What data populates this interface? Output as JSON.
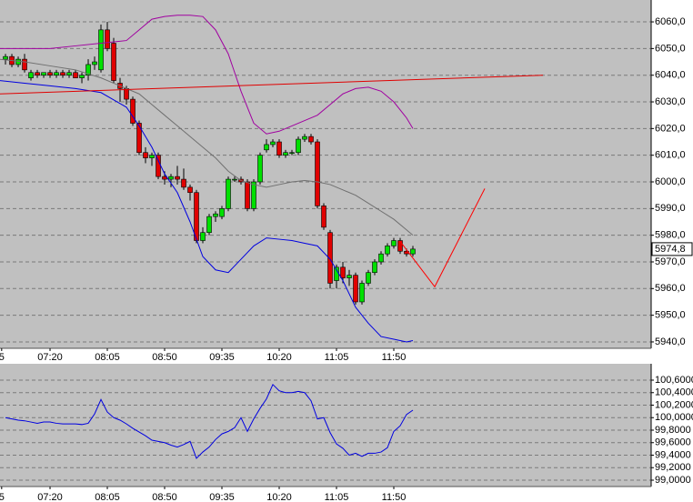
{
  "chart_data": [
    {
      "type": "candlestick",
      "x": [
        -7,
        -6,
        -5,
        -4,
        -3,
        -2,
        -1,
        0,
        1,
        2,
        3,
        4,
        5,
        6,
        7,
        8,
        9,
        10,
        11,
        12,
        13,
        14,
        15,
        16,
        17,
        18,
        19,
        20,
        21,
        22,
        23,
        24,
        25,
        26,
        27,
        28,
        29,
        30,
        31,
        32,
        33,
        34,
        35,
        36,
        37,
        38,
        39,
        40,
        41,
        42,
        43,
        44,
        45,
        46,
        47,
        48,
        49,
        50,
        51,
        52,
        53,
        54,
        55,
        56,
        57
      ],
      "open": [
        6046,
        6047,
        6044,
        6046,
        6039,
        6041,
        6040,
        6041,
        6040,
        6041,
        6040,
        6041,
        6039,
        6040,
        6044,
        6042,
        6057,
        6052,
        6037,
        6035,
        6031,
        6022,
        6011,
        6009,
        6010,
        6002,
        6001,
        6002,
        6001,
        5998,
        5996,
        5978,
        5981,
        5987,
        5987,
        5990,
        6001,
        6001,
        6000,
        5990,
        6000,
        6012,
        6014,
        6015,
        6010,
        6011,
        6011,
        6016,
        6017,
        6015,
        5991,
        5981,
        5963,
        5968,
        5964,
        5965,
        5955,
        5962,
        5966,
        5970,
        5973,
        5976,
        5978,
        5974,
        5973
      ],
      "high": [
        6048,
        6048,
        6047,
        6048,
        6042,
        6042,
        6041,
        6042,
        6042,
        6042,
        6042,
        6042,
        6041,
        6046,
        6047,
        6059,
        6060,
        6054,
        6039,
        6036,
        6032,
        6023,
        6013,
        6011,
        6011,
        6004,
        6003,
        6006,
        6005,
        5999,
        5997,
        5983,
        5988,
        5989,
        5991,
        6002,
        6002,
        6002,
        6001,
        6001,
        6011,
        6016,
        6016,
        6016,
        6012,
        6012,
        6017,
        6018,
        6018,
        6016,
        5992,
        5982,
        5969,
        5970,
        5967,
        5966,
        5963,
        5967,
        5971,
        5974,
        5977,
        5979,
        5979,
        5975,
        5976
      ],
      "low": [
        6044,
        6043,
        6043,
        6041,
        6038,
        6039,
        6039,
        6039,
        6039,
        6039,
        6039,
        6039,
        6037,
        6038,
        6042,
        6041,
        6049,
        6037,
        6030,
        6029,
        6021,
        6010,
        6007,
        6006,
        6001,
        5999,
        5998,
        5999,
        5997,
        5993,
        5977,
        5977,
        5980,
        5985,
        5986,
        5989,
        6000,
        5999,
        5989,
        5989,
        5999,
        6011,
        6013,
        6009,
        6009,
        6010,
        6010,
        6015,
        6014,
        5990,
        5982,
        5960,
        5960,
        5962,
        5961,
        5954,
        5954,
        5961,
        5965,
        5969,
        5972,
        5975,
        5973,
        5972,
        5972
      ],
      "close": [
        6047,
        6044,
        6046,
        6042,
        6041,
        6040,
        6041,
        6040,
        6041,
        6040,
        6041,
        6039,
        6040,
        6044,
        6045,
        6057,
        6050,
        6038,
        6035,
        6031,
        6022,
        6011,
        6009,
        6010,
        6002,
        6001,
        6002,
        6001,
        5998,
        5996,
        5978,
        5981,
        5987,
        5988,
        5990,
        6001,
        6001,
        6000,
        5990,
        6000,
        6010,
        6014,
        6015,
        6010,
        6011,
        6011,
        6016,
        6017,
        6015,
        5991,
        5983,
        5962,
        5968,
        5964,
        5965,
        5955,
        5962,
        5966,
        5970,
        5973,
        5976,
        5978,
        5974,
        5973,
        5974.8
      ],
      "up_color": "#00e000",
      "down_color": "#e00000",
      "lines": [
        {
          "color": "#a000a0",
          "x": [
            -8,
            -4,
            0,
            4,
            8,
            12,
            14,
            16,
            18,
            20,
            22,
            24,
            26,
            28,
            30,
            32,
            34,
            36,
            38,
            40,
            42,
            44,
            46,
            48,
            50,
            52,
            54,
            56,
            57
          ],
          "values": [
            6050,
            6050,
            6050,
            6051,
            6052,
            6053,
            6057,
            6061,
            6062,
            6062.5,
            6062.5,
            6062,
            6057,
            6048,
            6034,
            6022,
            6018,
            6019,
            6021,
            6023,
            6025,
            6029,
            6033,
            6035,
            6035.5,
            6034,
            6030,
            6024,
            6020
          ]
        },
        {
          "color": "#707070",
          "x": [
            -8,
            -4,
            0,
            4,
            8,
            12,
            14,
            16,
            18,
            20,
            22,
            24,
            26,
            28,
            30,
            32,
            34,
            36,
            38,
            40,
            42,
            44,
            46,
            48,
            50,
            52,
            54,
            56,
            57
          ],
          "values": [
            6046,
            6045,
            6043.5,
            6042,
            6039,
            6035,
            6033,
            6029,
            6025,
            6021,
            6017,
            6013,
            6009,
            6004,
            6000.5,
            5999,
            5998,
            5999,
            6000,
            6000.5,
            6000,
            5999,
            5997,
            5995,
            5992,
            5989,
            5986,
            5982,
            5980
          ]
        },
        {
          "color": "#0000e0",
          "x": [
            -8,
            -4,
            0,
            4,
            8,
            12,
            14,
            16,
            18,
            20,
            22,
            24,
            26,
            28,
            30,
            32,
            34,
            36,
            38,
            40,
            42,
            44,
            46,
            48,
            50,
            52,
            54,
            56,
            57
          ],
          "values": [
            6038,
            6037,
            6036,
            6035,
            6033.5,
            6028,
            6021,
            6013,
            6003,
            5996,
            5985,
            5972,
            5967,
            5966,
            5971,
            5976,
            5979,
            5978.5,
            5978,
            5977,
            5976,
            5971,
            5963,
            5953,
            5947,
            5942,
            5941,
            5940,
            5940.5
          ]
        },
        {
          "color": "#e00000",
          "x": [
            -7.86,
            77.43
          ],
          "values": [
            6033,
            6040
          ]
        },
        {
          "color": "#ff0000",
          "x": [
            55,
            60.43,
            68.29
          ],
          "values": [
            5977.7,
            5960.7,
            5997.5
          ]
        }
      ],
      "last_price": 5974.8,
      "last_price_label": "5974,8",
      "xlim": [
        -7.86,
        94.43
      ],
      "xticks": [
        {
          "value": -7.6,
          "label": "5"
        },
        {
          "value": 0,
          "label": "07:20"
        },
        {
          "value": 9,
          "label": "08:05"
        },
        {
          "value": 18,
          "label": "08:50"
        },
        {
          "value": 27,
          "label": "09:35"
        },
        {
          "value": 36,
          "label": "10:20"
        },
        {
          "value": 45,
          "label": "11:05"
        },
        {
          "value": 54,
          "label": "11:50"
        }
      ],
      "ylim": [
        5937.6,
        6068.2
      ],
      "yticks": [
        {
          "value": 5940,
          "label": "5940,0"
        },
        {
          "value": 5950,
          "label": "5950,0"
        },
        {
          "value": 5960,
          "label": "5960,0"
        },
        {
          "value": 5970,
          "label": "5970,0"
        },
        {
          "value": 5980,
          "label": "5980,0"
        },
        {
          "value": 5990,
          "label": "5990,0"
        },
        {
          "value": 6000,
          "label": "6000,0"
        },
        {
          "value": 6010,
          "label": "6010,0"
        },
        {
          "value": 6020,
          "label": "6020,0"
        },
        {
          "value": 6030,
          "label": "6030,0"
        },
        {
          "value": 6040,
          "label": "6040,0"
        },
        {
          "value": 6050,
          "label": "6050,0"
        },
        {
          "value": 6060,
          "label": "6060,0"
        }
      ],
      "grid": true
    },
    {
      "type": "line",
      "x": [
        -7,
        -6,
        -5,
        -4,
        -3,
        -2,
        -1,
        0,
        1,
        2,
        3,
        4,
        5,
        6,
        7,
        8,
        9,
        10,
        11,
        12,
        13,
        14,
        15,
        16,
        17,
        18,
        19,
        20,
        21,
        22,
        23,
        24,
        25,
        26,
        27,
        28,
        29,
        30,
        31,
        32,
        33,
        34,
        35,
        36,
        37,
        38,
        39,
        40,
        41,
        42,
        43,
        44,
        45,
        46,
        47,
        48,
        49,
        50,
        51,
        52,
        53,
        54,
        55,
        56,
        57
      ],
      "values": [
        100,
        99.98,
        99.96,
        99.95,
        99.93,
        99.91,
        99.93,
        99.93,
        99.91,
        99.9,
        99.9,
        99.9,
        99.89,
        99.91,
        100.06,
        100.29,
        100.09,
        100,
        99.96,
        99.9,
        99.83,
        99.77,
        99.71,
        99.64,
        99.62,
        99.6,
        99.56,
        99.53,
        99.57,
        99.62,
        99.35,
        99.45,
        99.53,
        99.65,
        99.74,
        99.78,
        99.84,
        100,
        99.78,
        99.98,
        100.15,
        100.3,
        100.53,
        100.43,
        100.4,
        100.4,
        100.42,
        100.4,
        100.27,
        99.98,
        100,
        99.76,
        99.58,
        99.51,
        99.4,
        99.43,
        99.38,
        99.43,
        99.43,
        99.45,
        99.52,
        99.78,
        99.87,
        100.05,
        100.12
      ],
      "color": "#0000e0",
      "xlim": [
        -7.86,
        94.43
      ],
      "xticks": [
        {
          "value": -7.6,
          "label": "5"
        },
        {
          "value": 0,
          "label": "07:20"
        },
        {
          "value": 9,
          "label": "08:05"
        },
        {
          "value": 18,
          "label": "08:50"
        },
        {
          "value": 27,
          "label": "09:35"
        },
        {
          "value": 36,
          "label": "10:20"
        },
        {
          "value": 45,
          "label": "11:05"
        },
        {
          "value": 54,
          "label": "11:50"
        }
      ],
      "ylim": [
        98.898,
        100.862
      ],
      "yticks": [
        {
          "value": 99,
          "label": "99,0000"
        },
        {
          "value": 99.2,
          "label": "99,2000"
        },
        {
          "value": 99.4,
          "label": "99,4000"
        },
        {
          "value": 99.6,
          "label": "99,6000"
        },
        {
          "value": 99.8,
          "label": "99,8000"
        },
        {
          "value": 100,
          "label": "100,0000"
        },
        {
          "value": 100.2,
          "label": "100,2000"
        },
        {
          "value": 100.4,
          "label": "100,4000"
        },
        {
          "value": 100.6,
          "label": "100,6000"
        }
      ],
      "grid": true
    }
  ]
}
